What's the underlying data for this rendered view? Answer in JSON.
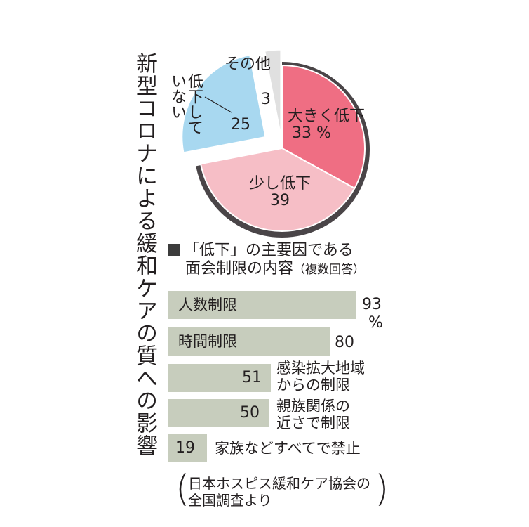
{
  "title": "新型コロナによる緩和ケアの質への影響",
  "colors": {
    "big_drop": "#ef6e83",
    "small_drop": "#f6bec6",
    "no_drop": "#a8d8f0",
    "other": "#e0e0e0",
    "ring": "#4a4548",
    "bar": "#c7cdbd"
  },
  "chart_data": [
    {
      "type": "pie",
      "slices": [
        {
          "label": "大きく低下",
          "value": 33,
          "value_text": "33 %"
        },
        {
          "label": "少し低下",
          "value": 39,
          "value_text": "39"
        },
        {
          "label": "低下していない",
          "label_lines": [
            "低下して",
            "いない"
          ],
          "value": 25,
          "value_text": "25"
        },
        {
          "label": "その他",
          "value": 3,
          "value_text": "3"
        }
      ]
    },
    {
      "type": "bar",
      "title_line1": "「低下」の主要因である",
      "title_line2": "面会制限の内容",
      "title_note": "（複数回答）",
      "unit": "%",
      "categories": [
        "人数制限",
        "時間制限",
        "感染拡大地域からの制限",
        "親族関係の近さで制限",
        "家族などすべてで禁止"
      ],
      "category_lines": [
        [
          "人数制限"
        ],
        [
          "時間制限"
        ],
        [
          "感染拡大地域",
          "からの制限"
        ],
        [
          "親族関係の",
          "近さで制限"
        ],
        [
          "家族などすべてで禁止"
        ]
      ],
      "values": [
        93,
        80,
        51,
        50,
        19
      ],
      "value_text": [
        "93",
        "80",
        "51",
        "50",
        "19"
      ]
    }
  ],
  "source_line1": "日本ホスピス緩和ケア協会の",
  "source_line2": "全国調査より"
}
